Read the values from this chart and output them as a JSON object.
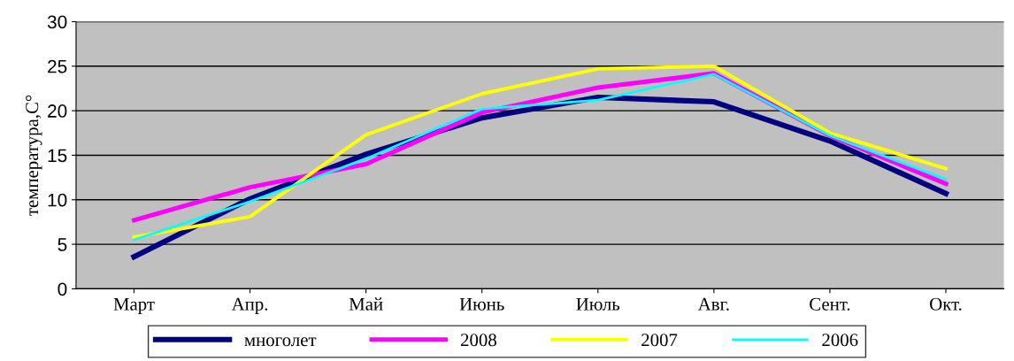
{
  "chart_data": {
    "type": "line",
    "ylabel": "температура,С°",
    "categories": [
      "Март",
      "Апр.",
      "Май",
      "Июнь",
      "Июль",
      "Авг.",
      "Сент.",
      "Окт."
    ],
    "series": [
      {
        "name": "многолет",
        "color": "#000080",
        "values": [
          3.6,
          10.1,
          15.1,
          19.2,
          21.5,
          21.0,
          16.6,
          10.7
        ]
      },
      {
        "name": "2008",
        "color": "#ff00ff",
        "values": [
          7.7,
          11.4,
          14.0,
          19.8,
          22.6,
          24.2,
          17.2,
          11.8
        ]
      },
      {
        "name": "2007",
        "color": "#ffff00",
        "values": [
          5.8,
          8.1,
          17.3,
          21.9,
          24.7,
          25.0,
          17.5,
          13.5
        ]
      },
      {
        "name": "2006",
        "color": "#00ffff",
        "values": [
          5.5,
          9.8,
          14.6,
          20.2,
          21.2,
          24.1,
          17.2,
          12.3
        ]
      }
    ],
    "ylim": [
      0,
      30
    ],
    "yticks": [
      0,
      5,
      10,
      15,
      20,
      25,
      30
    ],
    "grid": "y",
    "legend": "bottom",
    "marker": "none",
    "line_style": "solid"
  }
}
